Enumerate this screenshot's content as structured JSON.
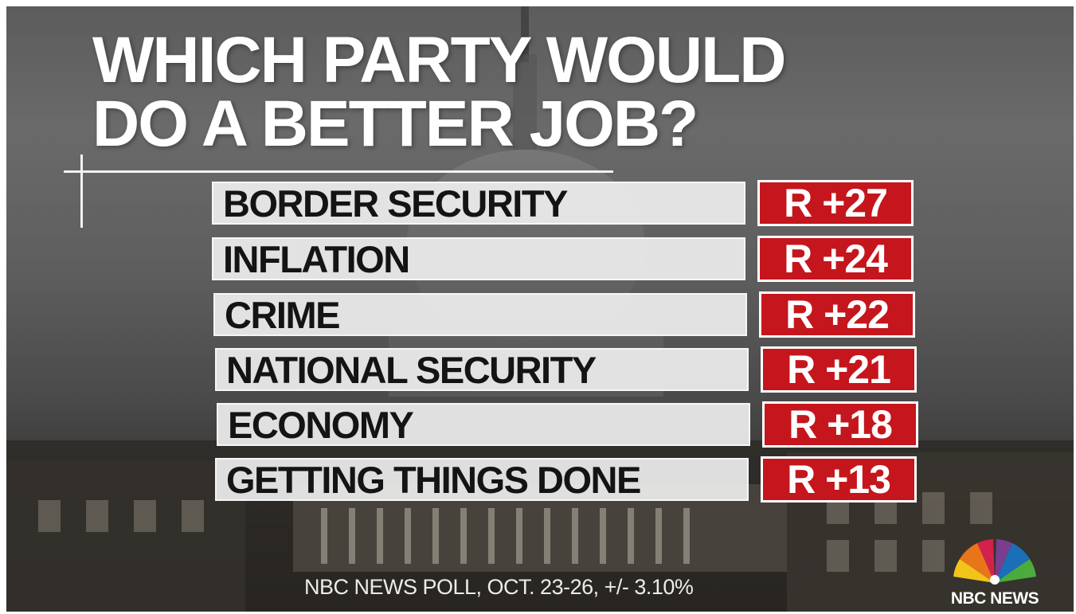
{
  "title": {
    "line1": "WHICH PARTY WOULD",
    "line2": "DO A BETTER JOB?"
  },
  "chart_data": {
    "type": "table",
    "categories": [
      "BORDER SECURITY",
      "INFLATION",
      "CRIME",
      "NATIONAL SECURITY",
      "ECONOMY",
      "GETTING THINGS DONE"
    ],
    "values": [
      "R +27",
      "R +24",
      "R +22",
      "R +21",
      "R +18",
      "R +13"
    ],
    "series": [
      {
        "values": [
          27,
          24,
          22,
          21,
          18,
          13
        ]
      }
    ],
    "colors": {
      "label_box": "#eeeeee",
      "value_box": "#c4161c",
      "value_text": "#ffffff"
    }
  },
  "source": "NBC NEWS POLL, OCT. 23-26, +/- 3.10%",
  "logo": {
    "text": "NBC NEWS",
    "icon": "nbc-peacock-icon"
  }
}
